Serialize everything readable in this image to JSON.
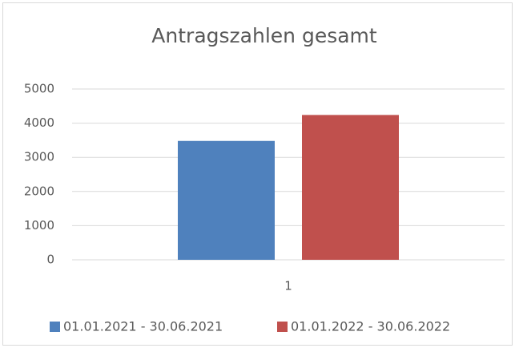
{
  "chart_data": {
    "type": "bar",
    "title": "Antragszahlen gesamt",
    "categories": [
      "1"
    ],
    "series": [
      {
        "name": "01.01.2021 - 30.06.2021",
        "color": "#4f81bd",
        "values": [
          3480
        ]
      },
      {
        "name": "01.01.2022 - 30.06.2022",
        "color": "#c0504d",
        "values": [
          4240
        ]
      }
    ],
    "ylim": [
      0,
      5000
    ],
    "yticks": [
      0,
      1000,
      2000,
      3000,
      4000,
      5000
    ],
    "grid": true
  }
}
